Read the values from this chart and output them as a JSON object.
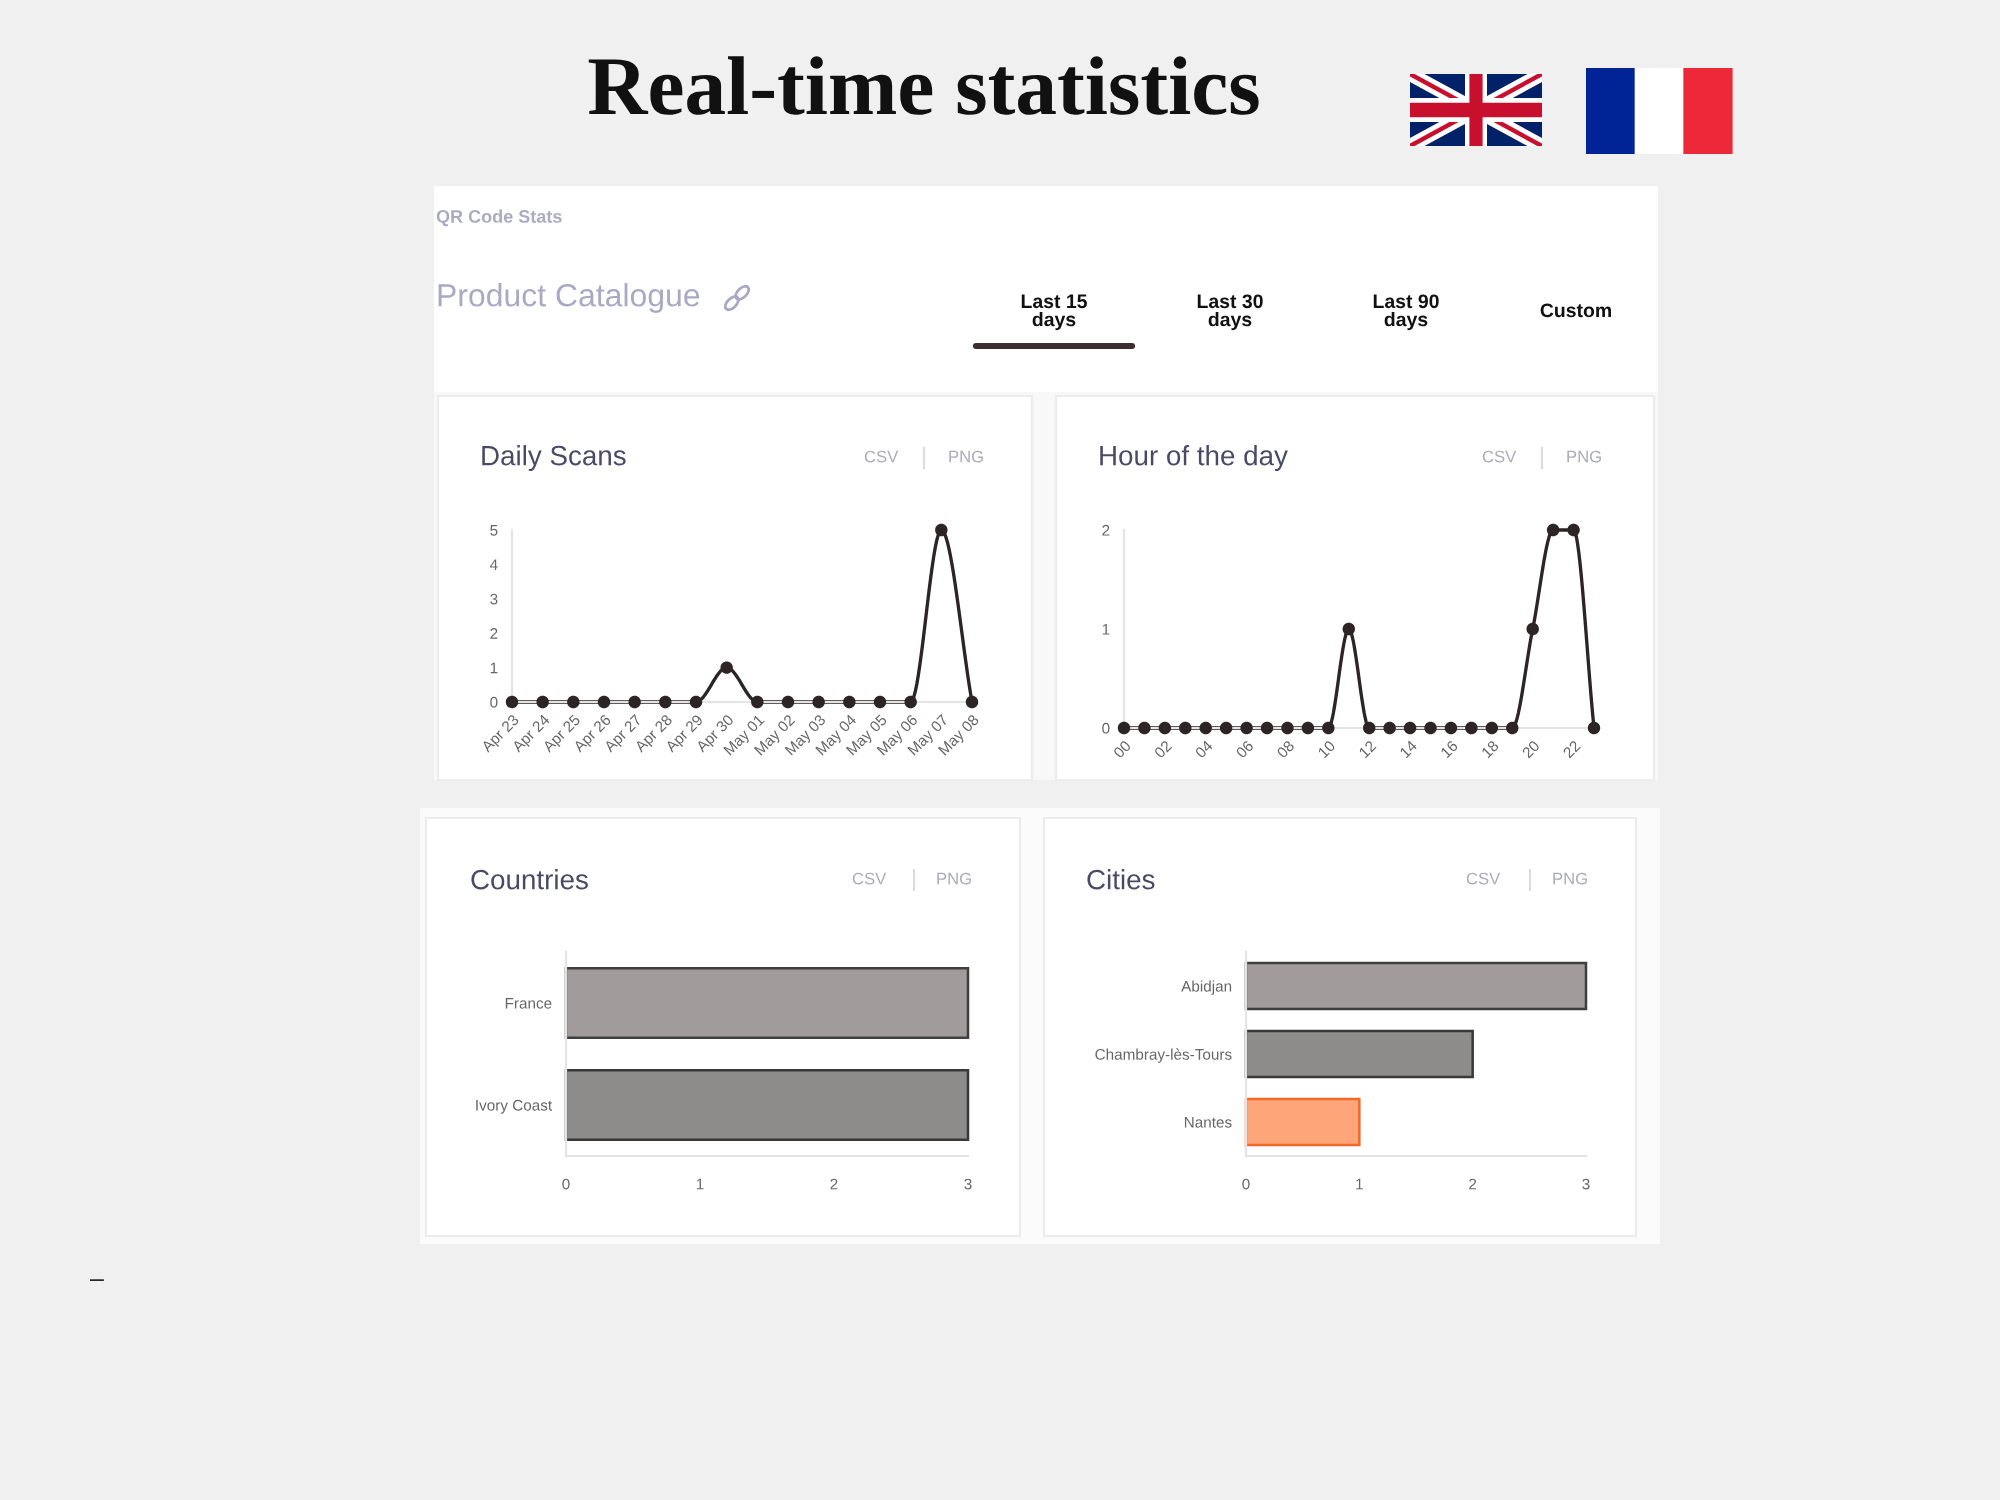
{
  "chart_data": [
    {
      "type": "other",
      "title": "Real-time statistics",
      "subtitle": "QR Code Stats",
      "annotations": [
        "Product Catalogue",
        "Last 15 days",
        "Last 30 days",
        "Last 90 days",
        "Custom",
        "–"
      ]
    },
    {
      "type": "line",
      "title": "Daily Scans",
      "categories": [
        "Apr 23",
        "Apr 24",
        "Apr 25",
        "Apr 26",
        "Apr 27",
        "Apr 28",
        "Apr 29",
        "Apr 30",
        "May 01",
        "May 02",
        "May 03",
        "May 04",
        "May 05",
        "May 06",
        "May 07",
        "May 08"
      ],
      "values": [
        0,
        0,
        0,
        0,
        0,
        0,
        0,
        1,
        0,
        0,
        0,
        0,
        0,
        0,
        5,
        0
      ],
      "color": "#2d2426",
      "marker": "circle",
      "ylim": [
        0,
        5
      ],
      "yticks": [
        0,
        1,
        2,
        3,
        4,
        5
      ],
      "annotations": [
        "CSV",
        "PNG"
      ]
    },
    {
      "type": "line",
      "title": "Hour of the day",
      "categories": [
        "00",
        null,
        "02",
        null,
        "04",
        null,
        "06",
        null,
        "08",
        null,
        "10",
        null,
        "12",
        null,
        "14",
        null,
        "16",
        null,
        "18",
        null,
        "20",
        null,
        "22",
        null
      ],
      "values": [
        0,
        0,
        0,
        0,
        0,
        0,
        0,
        0,
        0,
        0,
        0,
        1,
        0,
        0,
        0,
        0,
        0,
        0,
        0,
        0,
        1,
        2,
        2,
        0
      ],
      "color": "#2d2426",
      "marker": "circle",
      "ylim": [
        0,
        2
      ],
      "yticks": [
        0,
        1,
        2
      ],
      "annotations": [
        "CSV",
        "PNG"
      ]
    },
    {
      "type": "bar",
      "orientation": "horizontal",
      "title": "Countries",
      "categories": [
        "France",
        "Ivory Coast"
      ],
      "values": [
        3,
        3
      ],
      "colors": [
        "#a19b9b",
        "#8e8c8b"
      ],
      "xlim": [
        0,
        3
      ],
      "xticks": [
        0,
        1,
        2,
        3
      ],
      "annotations": [
        "CSV",
        "PNG"
      ]
    },
    {
      "type": "bar",
      "orientation": "horizontal",
      "title": "Cities",
      "categories": [
        "Abidjan",
        "Chambray-lès-Tours",
        "Nantes"
      ],
      "values": [
        3,
        2,
        1
      ],
      "colors": [
        "#a19b9b",
        "#8e8c8b",
        "#ffa57a"
      ],
      "xlim": [
        0,
        3
      ],
      "xticks": [
        0,
        1,
        2,
        3
      ],
      "annotations": [
        "CSV",
        "PNG"
      ]
    }
  ]
}
